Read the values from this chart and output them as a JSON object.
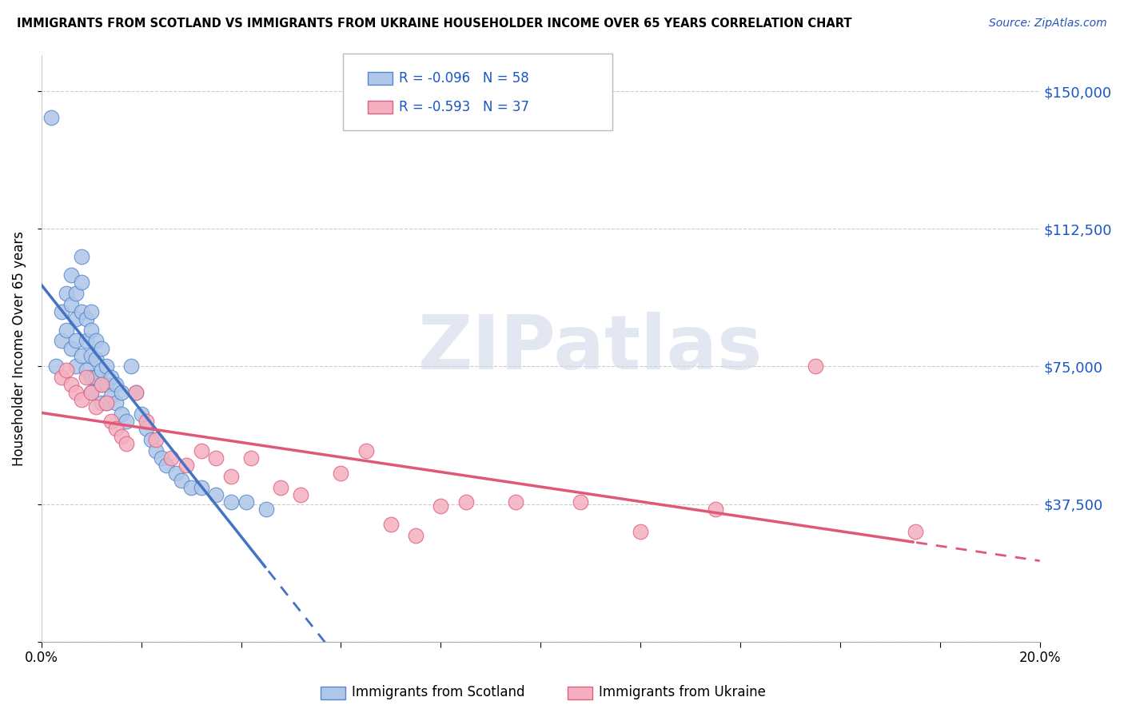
{
  "title": "IMMIGRANTS FROM SCOTLAND VS IMMIGRANTS FROM UKRAINE HOUSEHOLDER INCOME OVER 65 YEARS CORRELATION CHART",
  "source": "Source: ZipAtlas.com",
  "ylabel": "Householder Income Over 65 years",
  "xlim": [
    0.0,
    0.2
  ],
  "ylim": [
    0,
    160000
  ],
  "yticks": [
    0,
    37500,
    75000,
    112500,
    150000
  ],
  "ytick_labels": [
    "",
    "$37,500",
    "$75,000",
    "$112,500",
    "$150,000"
  ],
  "xticks": [
    0.0,
    0.02,
    0.04,
    0.06,
    0.08,
    0.1,
    0.12,
    0.14,
    0.16,
    0.18,
    0.2
  ],
  "xtick_labels": [
    "0.0%",
    "",
    "",
    "",
    "",
    "",
    "",
    "",
    "",
    "",
    "20.0%"
  ],
  "grid_color": "#cccccc",
  "background_color": "#ffffff",
  "scotland_color": "#aec6e8",
  "ukraine_color": "#f4b0c0",
  "scotland_edge_color": "#5588cc",
  "ukraine_edge_color": "#e06080",
  "scotland_line_color": "#4472c4",
  "ukraine_line_color": "#e05878",
  "legend_r_scotland": "R = -0.096",
  "legend_n_scotland": "N = 58",
  "legend_r_ukraine": "R = -0.593",
  "legend_n_ukraine": "N = 37",
  "scotland_x": [
    0.002,
    0.003,
    0.004,
    0.004,
    0.005,
    0.005,
    0.006,
    0.006,
    0.006,
    0.007,
    0.007,
    0.007,
    0.007,
    0.008,
    0.008,
    0.008,
    0.008,
    0.009,
    0.009,
    0.009,
    0.01,
    0.01,
    0.01,
    0.01,
    0.01,
    0.011,
    0.011,
    0.011,
    0.012,
    0.012,
    0.012,
    0.012,
    0.013,
    0.013,
    0.013,
    0.014,
    0.014,
    0.015,
    0.015,
    0.016,
    0.016,
    0.017,
    0.018,
    0.019,
    0.02,
    0.021,
    0.022,
    0.023,
    0.024,
    0.025,
    0.027,
    0.028,
    0.03,
    0.032,
    0.035,
    0.038,
    0.041,
    0.045
  ],
  "scotland_y": [
    143000,
    75000,
    90000,
    82000,
    95000,
    85000,
    100000,
    92000,
    80000,
    95000,
    88000,
    82000,
    75000,
    105000,
    98000,
    90000,
    78000,
    88000,
    82000,
    74000,
    90000,
    85000,
    78000,
    72000,
    68000,
    82000,
    77000,
    72000,
    80000,
    74000,
    70000,
    65000,
    75000,
    70000,
    65000,
    72000,
    67000,
    70000,
    65000,
    68000,
    62000,
    60000,
    75000,
    68000,
    62000,
    58000,
    55000,
    52000,
    50000,
    48000,
    46000,
    44000,
    42000,
    42000,
    40000,
    38000,
    38000,
    36000
  ],
  "ukraine_x": [
    0.004,
    0.005,
    0.006,
    0.007,
    0.008,
    0.009,
    0.01,
    0.011,
    0.012,
    0.013,
    0.014,
    0.015,
    0.016,
    0.017,
    0.019,
    0.021,
    0.023,
    0.026,
    0.029,
    0.032,
    0.035,
    0.038,
    0.042,
    0.048,
    0.052,
    0.06,
    0.065,
    0.07,
    0.075,
    0.08,
    0.085,
    0.095,
    0.108,
    0.12,
    0.135,
    0.155,
    0.175
  ],
  "ukraine_y": [
    72000,
    74000,
    70000,
    68000,
    66000,
    72000,
    68000,
    64000,
    70000,
    65000,
    60000,
    58000,
    56000,
    54000,
    68000,
    60000,
    55000,
    50000,
    48000,
    52000,
    50000,
    45000,
    50000,
    42000,
    40000,
    46000,
    52000,
    32000,
    29000,
    37000,
    38000,
    38000,
    38000,
    30000,
    36000,
    75000,
    30000
  ],
  "watermark": "ZIPatlas",
  "watermark_color": "#d0d8e8",
  "watermark_fontsize": 68
}
